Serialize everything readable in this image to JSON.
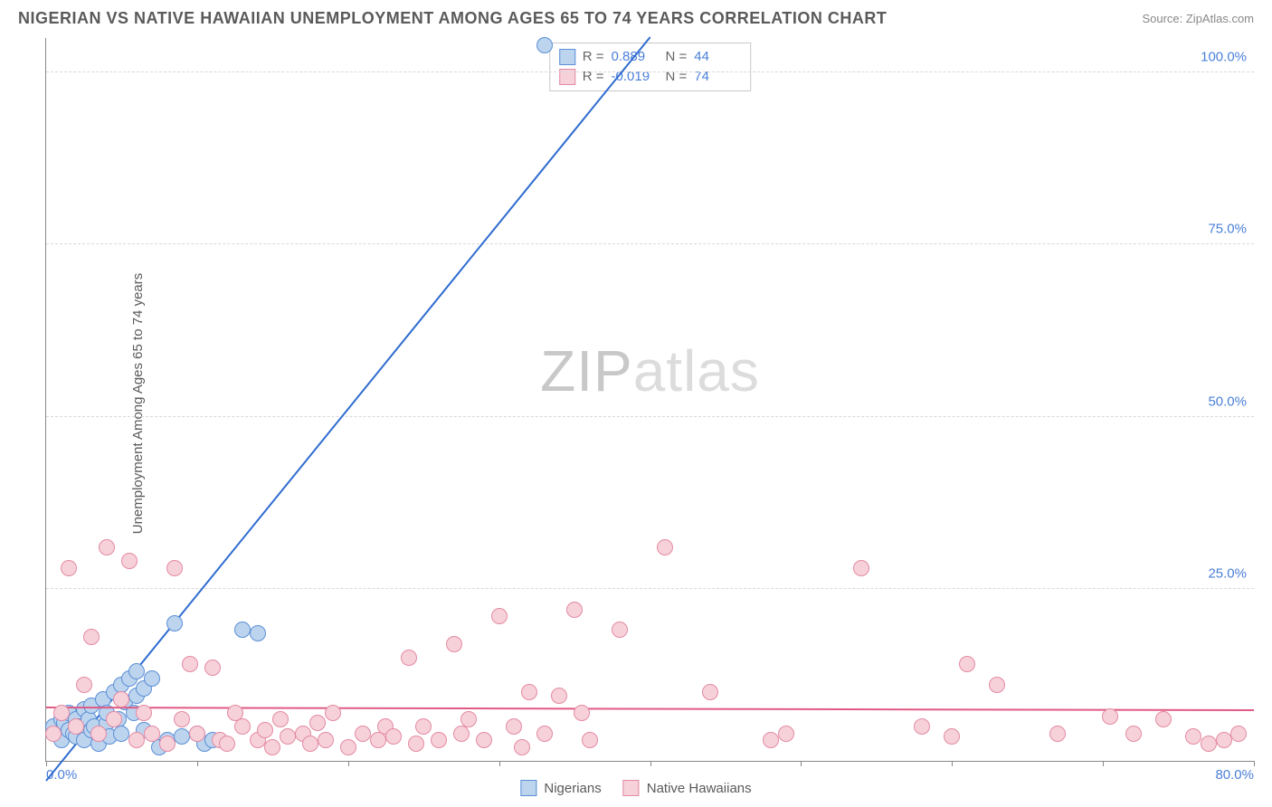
{
  "header": {
    "title": "NIGERIAN VS NATIVE HAWAIIAN UNEMPLOYMENT AMONG AGES 65 TO 74 YEARS CORRELATION CHART",
    "source": "Source: ZipAtlas.com"
  },
  "chart": {
    "type": "scatter",
    "ylabel": "Unemployment Among Ages 65 to 74 years",
    "xlim": [
      0,
      80
    ],
    "ylim": [
      0,
      105
    ],
    "xtick_positions": [
      0,
      10,
      20,
      30,
      40,
      50,
      60,
      70,
      80
    ],
    "xtick_labels": {
      "0": "0.0%",
      "80": "80.0%"
    },
    "ytick_positions": [
      25,
      50,
      75,
      100
    ],
    "ytick_labels": {
      "25": "25.0%",
      "50": "50.0%",
      "75": "75.0%",
      "100": "100.0%"
    },
    "background_color": "#ffffff",
    "grid_color": "#d8d8d8",
    "tick_label_color": "#4a7fd8",
    "axis_label_color": "#5a5a5a",
    "label_fontsize": 15,
    "tick_fontsize": 15,
    "point_radius": 9,
    "watermark": {
      "text_a": "ZIP",
      "text_b": "atlas"
    },
    "series": [
      {
        "name": "Nigerians",
        "fill": "#bcd4ee",
        "stroke": "#5b8fd6",
        "stats": {
          "R": "0.889",
          "N": "44"
        },
        "trend": {
          "x1": 0,
          "y1": -3,
          "x2": 40,
          "y2": 105,
          "color": "#2e6bd0",
          "width": 2
        },
        "points": [
          [
            0.5,
            5
          ],
          [
            0.8,
            4
          ],
          [
            1,
            6
          ],
          [
            1,
            3
          ],
          [
            1.2,
            5.5
          ],
          [
            1.5,
            4.5
          ],
          [
            1.5,
            7
          ],
          [
            1.8,
            4
          ],
          [
            2,
            6
          ],
          [
            2,
            3.5
          ],
          [
            2.2,
            5
          ],
          [
            2.5,
            7.5
          ],
          [
            2.5,
            3
          ],
          [
            2.8,
            6
          ],
          [
            3,
            4.5
          ],
          [
            3,
            8
          ],
          [
            3.2,
            5
          ],
          [
            3.5,
            2.5
          ],
          [
            3.8,
            9
          ],
          [
            4,
            5.5
          ],
          [
            4,
            7
          ],
          [
            4.2,
            3.5
          ],
          [
            4.5,
            10
          ],
          [
            4.8,
            6
          ],
          [
            5,
            11
          ],
          [
            5,
            4
          ],
          [
            5.2,
            8.5
          ],
          [
            5.5,
            12
          ],
          [
            5.8,
            7
          ],
          [
            6,
            9.5
          ],
          [
            6,
            13
          ],
          [
            6.5,
            10.5
          ],
          [
            6.5,
            4.5
          ],
          [
            7,
            12
          ],
          [
            7.5,
            2
          ],
          [
            8,
            3
          ],
          [
            8.5,
            20
          ],
          [
            9,
            3.5
          ],
          [
            10,
            4
          ],
          [
            10.5,
            2.5
          ],
          [
            11,
            3
          ],
          [
            13,
            19
          ],
          [
            14,
            18.5
          ],
          [
            33,
            104
          ]
        ]
      },
      {
        "name": "Native Hawaiians",
        "fill": "#f6d1da",
        "stroke": "#e48aa3",
        "stats": {
          "R": "-0.019",
          "N": "74"
        },
        "trend": {
          "x1": 0,
          "y1": 7.6,
          "x2": 80,
          "y2": 7.2,
          "color": "#e05a84",
          "width": 2
        },
        "points": [
          [
            0.5,
            4
          ],
          [
            1,
            7
          ],
          [
            1.5,
            28
          ],
          [
            2,
            5
          ],
          [
            2.5,
            11
          ],
          [
            3,
            18
          ],
          [
            3.5,
            4
          ],
          [
            4,
            31
          ],
          [
            4.5,
            6
          ],
          [
            5,
            9
          ],
          [
            5.5,
            29
          ],
          [
            6,
            3
          ],
          [
            6.5,
            7
          ],
          [
            7,
            4
          ],
          [
            8,
            2.5
          ],
          [
            8.5,
            28
          ],
          [
            9,
            6
          ],
          [
            9.5,
            14
          ],
          [
            10,
            4
          ],
          [
            11,
            13.5
          ],
          [
            11.5,
            3
          ],
          [
            12,
            2.5
          ],
          [
            12.5,
            7
          ],
          [
            13,
            5
          ],
          [
            14,
            3
          ],
          [
            14.5,
            4.5
          ],
          [
            15,
            2
          ],
          [
            15.5,
            6
          ],
          [
            16,
            3.5
          ],
          [
            17,
            4
          ],
          [
            17.5,
            2.5
          ],
          [
            18,
            5.5
          ],
          [
            18.5,
            3
          ],
          [
            19,
            7
          ],
          [
            20,
            2
          ],
          [
            21,
            4
          ],
          [
            22,
            3
          ],
          [
            22.5,
            5
          ],
          [
            23,
            3.5
          ],
          [
            24,
            15
          ],
          [
            24.5,
            2.5
          ],
          [
            25,
            5
          ],
          [
            26,
            3
          ],
          [
            27,
            17
          ],
          [
            27.5,
            4
          ],
          [
            28,
            6
          ],
          [
            29,
            3
          ],
          [
            30,
            21
          ],
          [
            31,
            5
          ],
          [
            31.5,
            2
          ],
          [
            32,
            10
          ],
          [
            33,
            4
          ],
          [
            34,
            9.5
          ],
          [
            35,
            22
          ],
          [
            35.5,
            7
          ],
          [
            36,
            3
          ],
          [
            38,
            19
          ],
          [
            41,
            31
          ],
          [
            44,
            10
          ],
          [
            48,
            3
          ],
          [
            49,
            4
          ],
          [
            54,
            28
          ],
          [
            58,
            5
          ],
          [
            60,
            3.5
          ],
          [
            61,
            14
          ],
          [
            63,
            11
          ],
          [
            67,
            4
          ],
          [
            70.5,
            6.5
          ],
          [
            72,
            4
          ],
          [
            74,
            6
          ],
          [
            76,
            3.5
          ],
          [
            77,
            2.5
          ],
          [
            78,
            3
          ],
          [
            79,
            4
          ]
        ]
      }
    ],
    "legend_labels": [
      "Nigerians",
      "Native Hawaiians"
    ]
  }
}
